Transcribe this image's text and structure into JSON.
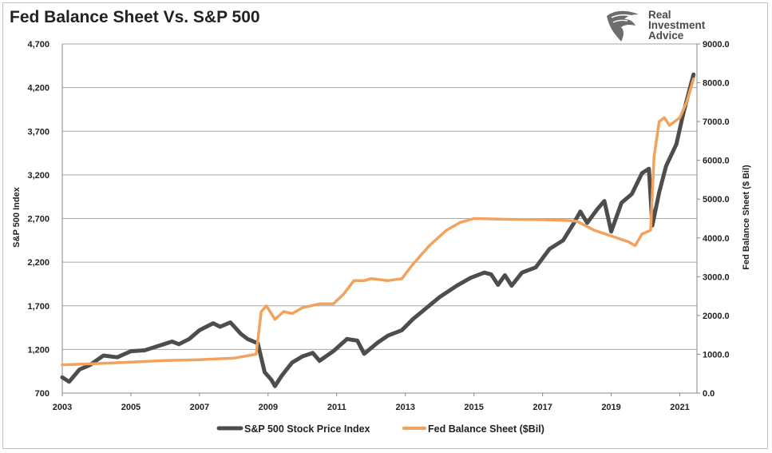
{
  "title": "Fed Balance Sheet Vs. S&P 500",
  "brand": {
    "line1": "Real",
    "line2": "Investment",
    "line3": "Advice",
    "logo": "eagle-head-icon"
  },
  "colors": {
    "sp500": "#4d4d4d",
    "fed": "#f2a25c",
    "grid": "#a6a6a6"
  },
  "chart_data": {
    "type": "line",
    "title": "Fed Balance Sheet Vs. S&P 500",
    "xlabel": "",
    "ylabel": "S&P 500 Index",
    "y2label": "Fed Balance Sheet ($ Bil)",
    "xlim": [
      2003,
      2021.5
    ],
    "ylim": [
      700,
      4700
    ],
    "y2lim": [
      0,
      9000
    ],
    "x_ticks": [
      2003,
      2005,
      2007,
      2009,
      2011,
      2013,
      2015,
      2017,
      2019,
      2021
    ],
    "x_tick_labels": [
      "2003",
      "2005",
      "2007",
      "2009",
      "2011",
      "2013",
      "2015",
      "2017",
      "2019",
      "2021"
    ],
    "y_ticks": [
      700,
      1200,
      1700,
      2200,
      2700,
      3200,
      3700,
      4200,
      4700
    ],
    "y_tick_labels": [
      "700",
      "1,200",
      "1,700",
      "2,200",
      "2,700",
      "3,200",
      "3,700",
      "4,200",
      "4,700"
    ],
    "y2_ticks": [
      0,
      1000,
      2000,
      3000,
      4000,
      5000,
      6000,
      7000,
      8000,
      9000
    ],
    "y2_tick_labels": [
      "0.0",
      "1000.0",
      "2000.0",
      "3000.0",
      "4000.0",
      "5000.0",
      "6000.0",
      "7000.0",
      "8000.0",
      "9000.0"
    ],
    "grid": true,
    "legend_position": "bottom-center",
    "series": [
      {
        "name": "S&P 500 Stock Price Index",
        "axis": "left",
        "x": [
          2003.0,
          2003.2,
          2003.5,
          2003.8,
          2004.2,
          2004.6,
          2005.0,
          2005.4,
          2005.8,
          2006.2,
          2006.4,
          2006.7,
          2007.0,
          2007.4,
          2007.6,
          2007.9,
          2008.2,
          2008.4,
          2008.7,
          2008.9,
          2009.1,
          2009.2,
          2009.4,
          2009.7,
          2010.0,
          2010.3,
          2010.5,
          2010.9,
          2011.3,
          2011.6,
          2011.8,
          2012.2,
          2012.5,
          2012.9,
          2013.2,
          2013.6,
          2014.0,
          2014.5,
          2014.9,
          2015.3,
          2015.5,
          2015.7,
          2015.9,
          2016.1,
          2016.4,
          2016.8,
          2017.2,
          2017.6,
          2017.9,
          2018.1,
          2018.3,
          2018.6,
          2018.8,
          2019.0,
          2019.3,
          2019.6,
          2019.9,
          2020.1,
          2020.2,
          2020.4,
          2020.6,
          2020.9,
          2021.1,
          2021.3,
          2021.4
        ],
        "values": [
          880,
          830,
          970,
          1020,
          1130,
          1110,
          1180,
          1190,
          1240,
          1290,
          1260,
          1320,
          1420,
          1500,
          1460,
          1510,
          1380,
          1320,
          1270,
          940,
          850,
          780,
          900,
          1050,
          1120,
          1160,
          1070,
          1180,
          1320,
          1300,
          1150,
          1280,
          1360,
          1420,
          1540,
          1670,
          1800,
          1930,
          2020,
          2080,
          2060,
          1940,
          2050,
          1930,
          2080,
          2140,
          2350,
          2450,
          2640,
          2780,
          2650,
          2810,
          2900,
          2550,
          2880,
          2980,
          3220,
          3270,
          2620,
          3000,
          3300,
          3550,
          3900,
          4200,
          4350
        ]
      },
      {
        "name": "Fed Balance Sheet ($Bil)",
        "axis": "right",
        "x": [
          2003.0,
          2004.0,
          2005.0,
          2006.0,
          2007.0,
          2008.0,
          2008.65,
          2008.8,
          2008.95,
          2009.2,
          2009.45,
          2009.7,
          2010.0,
          2010.5,
          2010.9,
          2011.2,
          2011.5,
          2011.8,
          2012.0,
          2012.5,
          2012.9,
          2013.2,
          2013.7,
          2014.2,
          2014.6,
          2015.0,
          2016.0,
          2017.0,
          2017.7,
          2018.0,
          2018.5,
          2019.0,
          2019.5,
          2019.7,
          2019.9,
          2020.15,
          2020.25,
          2020.4,
          2020.55,
          2020.7,
          2021.0,
          2021.2,
          2021.4
        ],
        "values": [
          730,
          760,
          800,
          840,
          860,
          900,
          1000,
          2100,
          2250,
          1900,
          2100,
          2050,
          2200,
          2300,
          2300,
          2550,
          2900,
          2900,
          2950,
          2900,
          2950,
          3300,
          3800,
          4200,
          4400,
          4500,
          4480,
          4470,
          4450,
          4430,
          4200,
          4050,
          3900,
          3800,
          4100,
          4200,
          6100,
          7000,
          7100,
          6900,
          7100,
          7500,
          8100
        ]
      }
    ]
  }
}
